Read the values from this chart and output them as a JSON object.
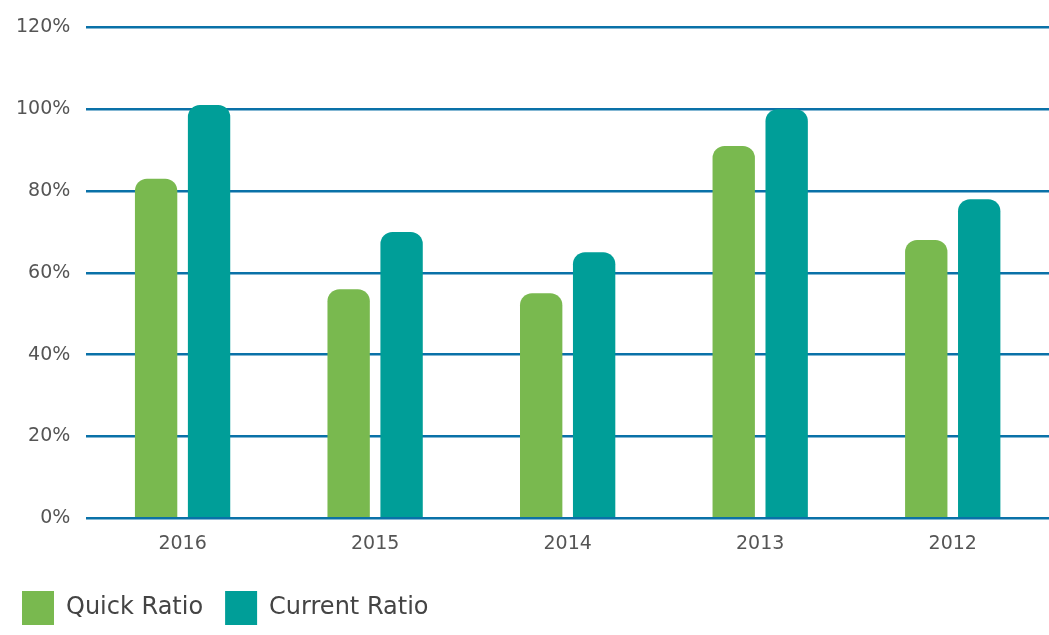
{
  "chart_data": {
    "type": "bar",
    "categories": [
      "2016",
      "2015",
      "2014",
      "2013",
      "2012"
    ],
    "series": [
      {
        "name": "Quick Ratio",
        "color": "#79b94f",
        "values": [
          83,
          56,
          55,
          91,
          68
        ]
      },
      {
        "name": "Current Ratio",
        "color": "#009e98",
        "values": [
          101,
          70,
          65,
          100,
          78
        ]
      }
    ],
    "ylim": [
      0,
      120
    ],
    "yticks": [
      {
        "value": 0,
        "label": "0%"
      },
      {
        "value": 20,
        "label": "20%"
      },
      {
        "value": 40,
        "label": "40%"
      },
      {
        "value": 60,
        "label": "60%"
      },
      {
        "value": 80,
        "label": "80%"
      },
      {
        "value": 100,
        "label": "100%"
      },
      {
        "value": 120,
        "label": "120%"
      }
    ],
    "grid": "y",
    "legend": "bottom left"
  }
}
